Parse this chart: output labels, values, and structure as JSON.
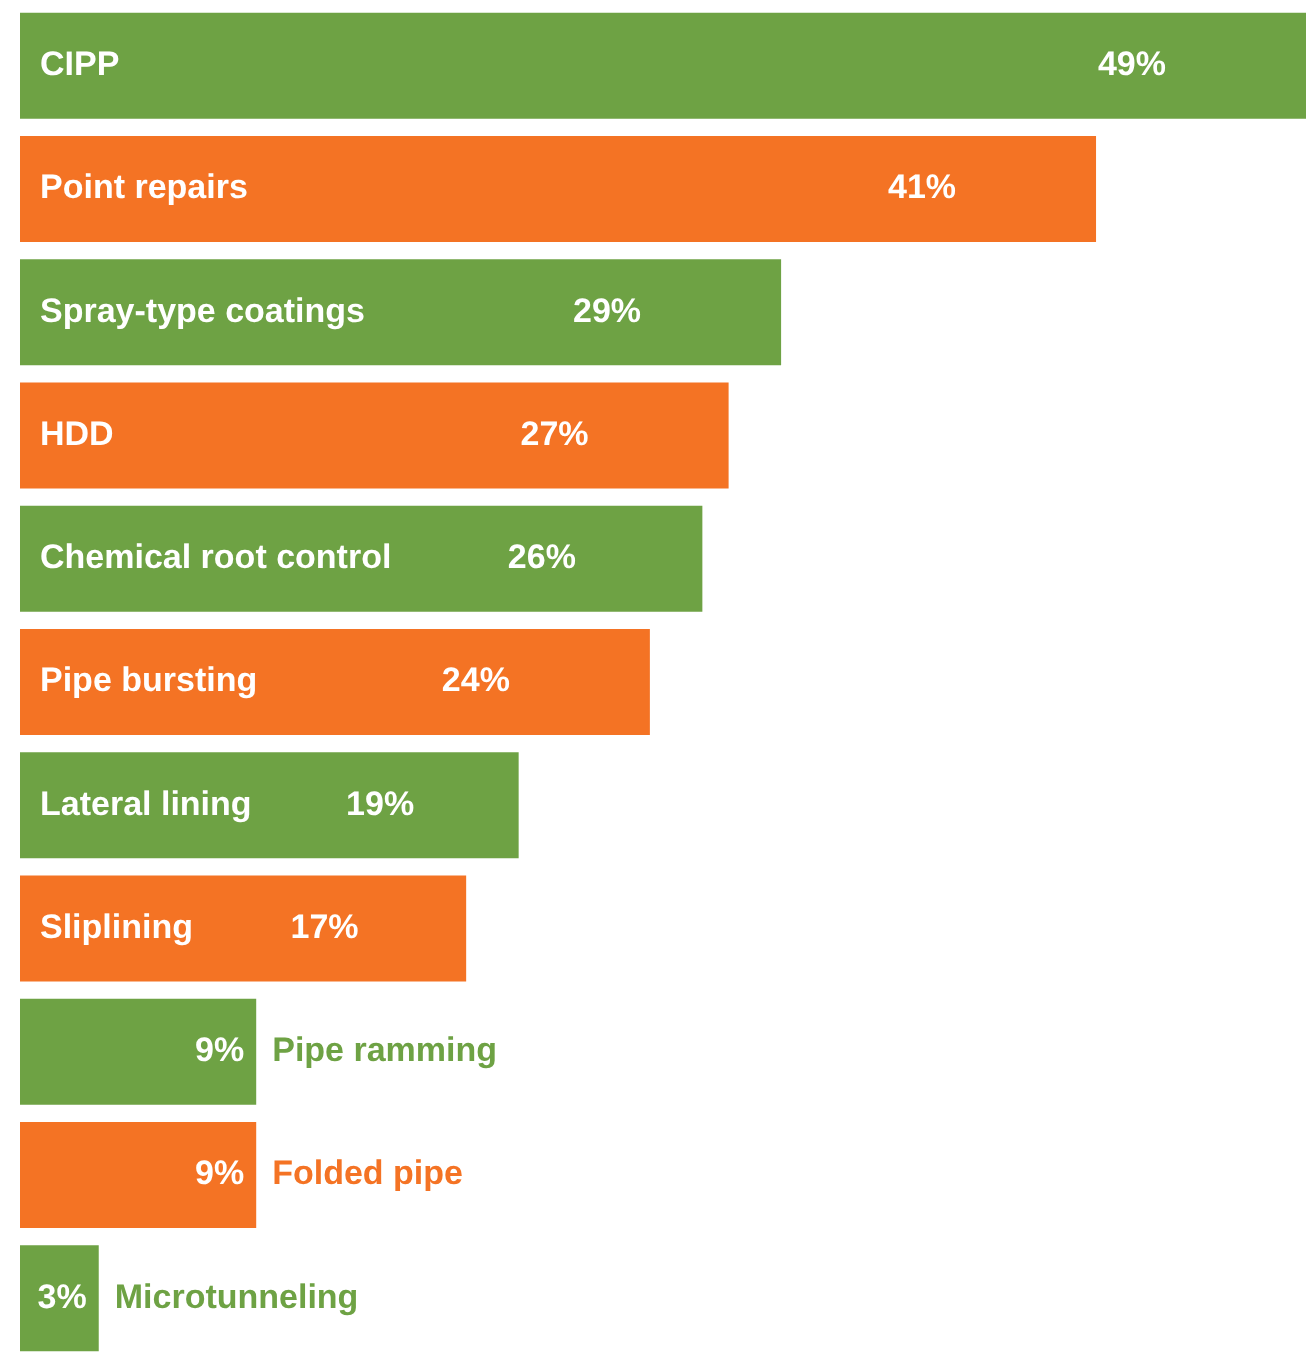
{
  "chart_data": {
    "type": "bar",
    "orientation": "horizontal",
    "categories": [
      "CIPP",
      "Point repairs",
      "Spray-type coatings",
      "HDD",
      "Chemical root control",
      "Pipe bursting",
      "Lateral lining",
      "Sliplining",
      "Pipe ramming",
      "Folded pipe",
      "Microtunneling"
    ],
    "values": [
      49,
      41,
      29,
      27,
      26,
      24,
      19,
      17,
      9,
      9,
      3
    ],
    "colors": [
      "#6ea244",
      "#f47324",
      "#6ea244",
      "#f47324",
      "#6ea244",
      "#f47324",
      "#6ea244",
      "#f47324",
      "#6ea244",
      "#f47324",
      "#6ea244"
    ],
    "value_labels": [
      "49%",
      "41%",
      "29%",
      "27%",
      "26%",
      "24%",
      "19%",
      "17%",
      "9%",
      "9%",
      "3%"
    ],
    "legend": false
  }
}
